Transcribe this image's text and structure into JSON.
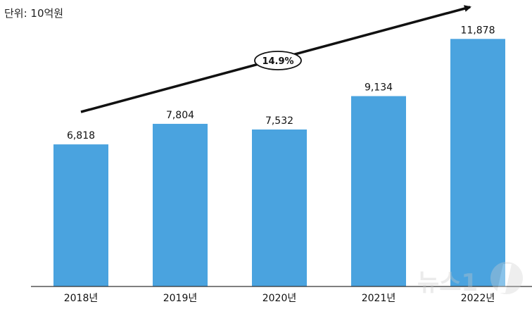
{
  "unit_label": "단위: 10억원",
  "chart_data": {
    "type": "bar",
    "categories": [
      "2018년",
      "2019년",
      "2020년",
      "2021년",
      "2022년"
    ],
    "values": [
      6818,
      7804,
      7532,
      9134,
      11878
    ],
    "value_labels": [
      "6,818",
      "7,804",
      "7,532",
      "9,134",
      "11,878"
    ],
    "annotation": "14.9%",
    "bar_color": "#4aa3df",
    "ylim": [
      0,
      12800
    ]
  },
  "watermark": "뉴스1"
}
